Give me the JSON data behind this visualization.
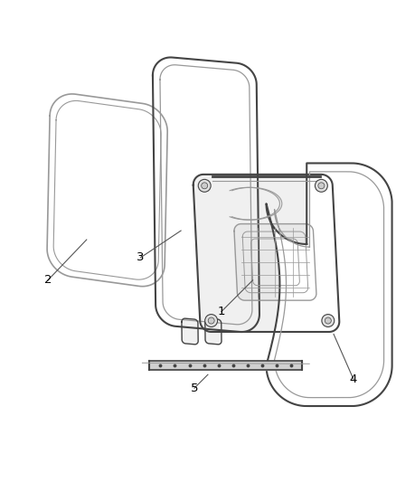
{
  "background_color": "#ffffff",
  "line_color": "#999999",
  "dark_line_color": "#444444",
  "label_color": "#000000",
  "label_fontsize": 9.5,
  "fig_w": 4.38,
  "fig_h": 5.33
}
